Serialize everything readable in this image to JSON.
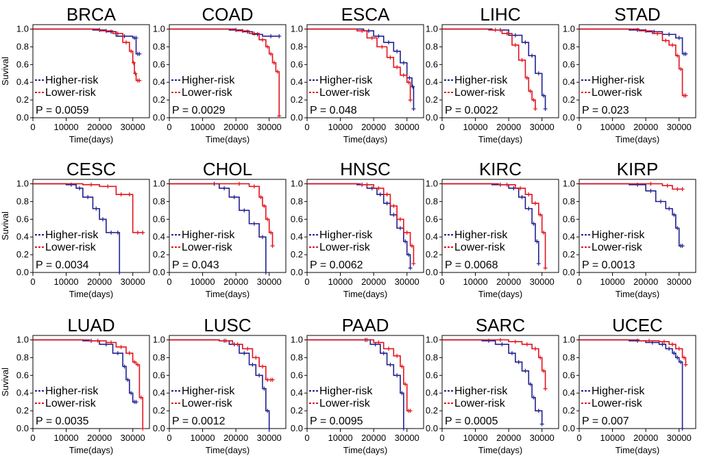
{
  "figure": {
    "shared": {
      "xlabel": "Time(days)",
      "ylabel": "Suvival",
      "xticks": [
        "0",
        "10000",
        "20000",
        "30000"
      ],
      "yticks": [
        "0.0",
        "0.2",
        "0.4",
        "0.6",
        "0.8",
        "1.0"
      ],
      "legend": [
        "Higher-risk",
        "Lower-risk"
      ]
    },
    "colors": {
      "higher": "#1f1f8f",
      "lower": "#e3121b"
    }
  },
  "chart_data": [
    {
      "type": "line",
      "title": "BRCA",
      "pvalue": "P = 0.0059",
      "xlim": [
        0,
        33000
      ],
      "ylim": [
        0,
        1.05
      ],
      "series": [
        {
          "name": "Higher-risk",
          "x": [
            0,
            18000,
            22000,
            25000,
            30000,
            31000,
            31000,
            32000
          ],
          "y": [
            1.0,
            0.99,
            0.97,
            0.92,
            0.9,
            0.9,
            0.72,
            0.72
          ]
        },
        {
          "name": "Lower-risk",
          "x": [
            0,
            20000,
            24000,
            27000,
            29000,
            30000,
            30500,
            31000,
            32000
          ],
          "y": [
            1.0,
            0.98,
            0.95,
            0.85,
            0.75,
            0.62,
            0.5,
            0.42,
            0.42
          ]
        }
      ]
    },
    {
      "type": "line",
      "title": "COAD",
      "pvalue": "P = 0.0029",
      "xlim": [
        0,
        34000
      ],
      "ylim": [
        0,
        1.05
      ],
      "series": [
        {
          "name": "Higher-risk",
          "x": [
            0,
            18000,
            22000,
            25000,
            28000,
            33000
          ],
          "y": [
            1.0,
            0.99,
            0.97,
            0.94,
            0.92,
            0.92
          ]
        },
        {
          "name": "Lower-risk",
          "x": [
            0,
            20000,
            24000,
            27000,
            29000,
            30000,
            31000,
            32000,
            33000
          ],
          "y": [
            1.0,
            0.98,
            0.95,
            0.88,
            0.8,
            0.72,
            0.62,
            0.52,
            0.02
          ]
        }
      ]
    },
    {
      "type": "line",
      "title": "ESCA",
      "pvalue": "P = 0.048",
      "xlim": [
        0,
        33000
      ],
      "ylim": [
        0,
        1.05
      ],
      "series": [
        {
          "name": "Higher-risk",
          "x": [
            0,
            17000,
            20000,
            23000,
            26000,
            28000,
            30000,
            31500,
            32000
          ],
          "y": [
            1.0,
            0.98,
            0.92,
            0.85,
            0.75,
            0.62,
            0.45,
            0.35,
            0.1
          ]
        },
        {
          "name": "Lower-risk",
          "x": [
            0,
            15000,
            18000,
            21000,
            24000,
            26000,
            28000,
            30000,
            31000
          ],
          "y": [
            1.0,
            0.98,
            0.9,
            0.8,
            0.68,
            0.57,
            0.48,
            0.4,
            0.2
          ]
        }
      ]
    },
    {
      "type": "line",
      "title": "LIHC",
      "pvalue": "P = 0.0022",
      "xlim": [
        0,
        32000
      ],
      "ylim": [
        0,
        1.05
      ],
      "series": [
        {
          "name": "Higher-risk",
          "x": [
            0,
            15000,
            20000,
            24000,
            26000,
            28000,
            30000,
            31000
          ],
          "y": [
            1.0,
            0.99,
            0.93,
            0.85,
            0.7,
            0.5,
            0.25,
            0.1
          ]
        },
        {
          "name": "Lower-risk",
          "x": [
            0,
            14000,
            18000,
            21000,
            23000,
            25000,
            26000,
            27000,
            28000
          ],
          "y": [
            1.0,
            0.99,
            0.95,
            0.82,
            0.65,
            0.45,
            0.3,
            0.2,
            0.1
          ]
        }
      ]
    },
    {
      "type": "line",
      "title": "STAD",
      "pvalue": "P = 0.023",
      "xlim": [
        0,
        33000
      ],
      "ylim": [
        0,
        1.05
      ],
      "series": [
        {
          "name": "Higher-risk",
          "x": [
            0,
            15000,
            20000,
            25000,
            29000,
            31000,
            32000
          ],
          "y": [
            1.0,
            0.99,
            0.97,
            0.94,
            0.9,
            0.72,
            0.72
          ]
        },
        {
          "name": "Lower-risk",
          "x": [
            0,
            18000,
            22000,
            25000,
            27000,
            29000,
            30000,
            31000,
            32000
          ],
          "y": [
            1.0,
            0.98,
            0.95,
            0.87,
            0.82,
            0.7,
            0.55,
            0.25,
            0.25
          ]
        }
      ]
    },
    {
      "type": "line",
      "title": "CESC",
      "pvalue": "P = 0.0034",
      "xlim": [
        0,
        35000
      ],
      "ylim": [
        0,
        1.05
      ],
      "series": [
        {
          "name": "Higher-risk",
          "x": [
            0,
            10000,
            13000,
            15000,
            18000,
            20000,
            22000,
            25000,
            26000
          ],
          "y": [
            1.0,
            0.99,
            0.95,
            0.85,
            0.72,
            0.6,
            0.45,
            0.45,
            0.0
          ]
        },
        {
          "name": "Lower-risk",
          "x": [
            0,
            15000,
            20000,
            25000,
            28000,
            30000,
            33000
          ],
          "y": [
            1.0,
            0.99,
            0.97,
            0.88,
            0.88,
            0.45,
            0.45
          ]
        }
      ]
    },
    {
      "type": "line",
      "title": "CHOL",
      "pvalue": "P = 0.043",
      "xlim": [
        0,
        32000
      ],
      "ylim": [
        0,
        1.05
      ],
      "series": [
        {
          "name": "Higher-risk",
          "x": [
            0,
            12000,
            15000,
            18000,
            21000,
            24000,
            27000,
            29000
          ],
          "y": [
            1.0,
            1.0,
            0.95,
            0.85,
            0.7,
            0.55,
            0.4,
            0.0
          ]
        },
        {
          "name": "Lower-risk",
          "x": [
            0,
            18000,
            24000,
            27000,
            28000,
            29000,
            30000,
            31000
          ],
          "y": [
            1.0,
            1.0,
            0.97,
            0.85,
            0.75,
            0.6,
            0.45,
            0.3
          ]
        }
      ]
    },
    {
      "type": "line",
      "title": "HNSC",
      "pvalue": "P = 0.0062",
      "xlim": [
        0,
        34000
      ],
      "ylim": [
        0,
        1.05
      ],
      "series": [
        {
          "name": "Higher-risk",
          "x": [
            0,
            15000,
            18000,
            21000,
            23000,
            25000,
            27000,
            29000,
            30000,
            31000
          ],
          "y": [
            1.0,
            0.99,
            0.95,
            0.88,
            0.78,
            0.65,
            0.5,
            0.35,
            0.2,
            0.05
          ]
        },
        {
          "name": "Lower-risk",
          "x": [
            0,
            16000,
            20000,
            23000,
            25000,
            27000,
            29000,
            31000,
            32000
          ],
          "y": [
            1.0,
            0.99,
            0.95,
            0.88,
            0.75,
            0.6,
            0.45,
            0.3,
            0.1
          ]
        }
      ]
    },
    {
      "type": "line",
      "title": "KIRC",
      "pvalue": "P = 0.0068",
      "xlim": [
        0,
        33000
      ],
      "ylim": [
        0,
        1.05
      ],
      "series": [
        {
          "name": "Higher-risk",
          "x": [
            0,
            15000,
            20000,
            23000,
            25000,
            27000,
            28000,
            29000
          ],
          "y": [
            1.0,
            0.99,
            0.95,
            0.85,
            0.72,
            0.55,
            0.35,
            0.1
          ]
        },
        {
          "name": "Lower-risk",
          "x": [
            0,
            17000,
            22000,
            25000,
            27000,
            29000,
            30000,
            31000
          ],
          "y": [
            1.0,
            0.99,
            0.95,
            0.88,
            0.78,
            0.65,
            0.45,
            0.05
          ]
        }
      ]
    },
    {
      "type": "line",
      "title": "KIRP",
      "pvalue": "P = 0.0013",
      "xlim": [
        0,
        32000
      ],
      "ylim": [
        0,
        1.05
      ],
      "series": [
        {
          "name": "Higher-risk",
          "x": [
            0,
            15000,
            20000,
            23000,
            26000,
            28000,
            29000,
            30000,
            31000
          ],
          "y": [
            1.0,
            0.99,
            0.92,
            0.8,
            0.72,
            0.65,
            0.5,
            0.3,
            0.3
          ]
        },
        {
          "name": "Lower-risk",
          "x": [
            0,
            18000,
            25000,
            28000,
            31000
          ],
          "y": [
            1.0,
            1.0,
            0.98,
            0.94,
            0.94
          ]
        }
      ]
    },
    {
      "type": "line",
      "title": "LUAD",
      "pvalue": "P = 0.0035",
      "xlim": [
        0,
        34000
      ],
      "ylim": [
        0,
        1.05
      ],
      "series": [
        {
          "name": "Higher-risk",
          "x": [
            0,
            15000,
            20000,
            24000,
            27000,
            28000,
            29000,
            30000,
            31000
          ],
          "y": [
            1.0,
            0.99,
            0.95,
            0.85,
            0.7,
            0.55,
            0.4,
            0.3,
            0.3
          ]
        },
        {
          "name": "Lower-risk",
          "x": [
            0,
            17000,
            22000,
            25000,
            28000,
            30000,
            31000,
            32000,
            33000
          ],
          "y": [
            1.0,
            0.99,
            0.97,
            0.92,
            0.85,
            0.75,
            0.72,
            0.35,
            0.0
          ]
        }
      ]
    },
    {
      "type": "line",
      "title": "LUSC",
      "pvalue": "P = 0.0012",
      "xlim": [
        0,
        32000
      ],
      "ylim": [
        0,
        1.05
      ],
      "series": [
        {
          "name": "Higher-risk",
          "x": [
            0,
            15000,
            18000,
            21000,
            24000,
            26000,
            28000,
            29000,
            30000
          ],
          "y": [
            1.0,
            0.99,
            0.95,
            0.85,
            0.72,
            0.6,
            0.45,
            0.2,
            0.0
          ]
        },
        {
          "name": "Lower-risk",
          "x": [
            0,
            15000,
            19000,
            22000,
            25000,
            27000,
            29000,
            30000,
            31000
          ],
          "y": [
            1.0,
            0.99,
            0.95,
            0.9,
            0.8,
            0.7,
            0.55,
            0.55,
            0.55
          ]
        }
      ]
    },
    {
      "type": "line",
      "title": "PAAD",
      "pvalue": "P = 0.0095",
      "xlim": [
        0,
        32000
      ],
      "ylim": [
        0,
        1.05
      ],
      "series": [
        {
          "name": "Higher-risk",
          "x": [
            0,
            16000,
            19000,
            22000,
            24000,
            26000,
            28000,
            29000
          ],
          "y": [
            1.0,
            1.0,
            0.95,
            0.85,
            0.72,
            0.6,
            0.4,
            0.0
          ]
        },
        {
          "name": "Lower-risk",
          "x": [
            0,
            16000,
            20000,
            23000,
            26000,
            28000,
            29000,
            30000,
            31000
          ],
          "y": [
            1.0,
            1.0,
            0.97,
            0.9,
            0.82,
            0.7,
            0.5,
            0.2,
            0.2
          ]
        }
      ]
    },
    {
      "type": "line",
      "title": "SARC",
      "pvalue": "P = 0.0005",
      "xlim": [
        0,
        32000
      ],
      "ylim": [
        0,
        1.05
      ],
      "series": [
        {
          "name": "Higher-risk",
          "x": [
            0,
            12000,
            16000,
            20000,
            22000,
            24000,
            26000,
            27000,
            28000,
            30000
          ],
          "y": [
            1.0,
            0.99,
            0.95,
            0.85,
            0.75,
            0.65,
            0.5,
            0.35,
            0.2,
            0.05
          ]
        },
        {
          "name": "Lower-risk",
          "x": [
            0,
            15000,
            20000,
            24000,
            27000,
            29000,
            30000,
            31000
          ],
          "y": [
            1.0,
            1.0,
            0.98,
            0.95,
            0.9,
            0.8,
            0.65,
            0.45
          ]
        }
      ]
    },
    {
      "type": "line",
      "title": "UCEC",
      "pvalue": "P = 0.007",
      "xlim": [
        0,
        33000
      ],
      "ylim": [
        0,
        1.05
      ],
      "series": [
        {
          "name": "Higher-risk",
          "x": [
            0,
            15000,
            20000,
            24000,
            26000,
            28000,
            29000,
            30000,
            31000
          ],
          "y": [
            1.0,
            0.99,
            0.97,
            0.95,
            0.9,
            0.85,
            0.8,
            0.75,
            0.0
          ]
        },
        {
          "name": "Lower-risk",
          "x": [
            0,
            18000,
            24000,
            27000,
            29000,
            31000,
            32000
          ],
          "y": [
            1.0,
            0.99,
            0.98,
            0.95,
            0.9,
            0.8,
            0.72
          ]
        }
      ]
    }
  ]
}
